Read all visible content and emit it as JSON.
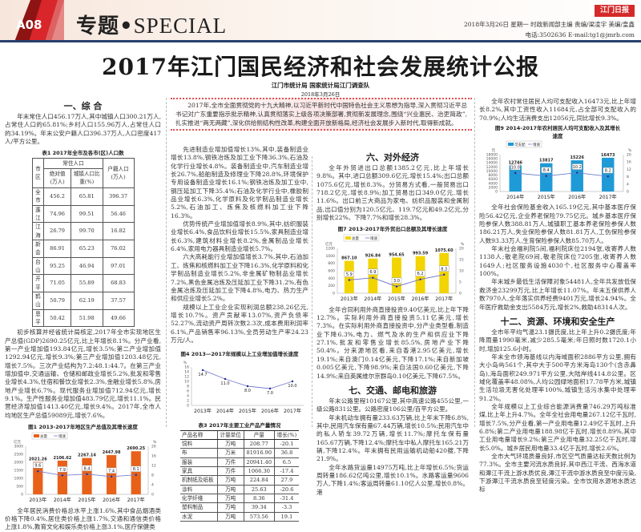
{
  "header": {
    "page": "A08",
    "section_cn": "专题•",
    "section_en": "SPECIAL",
    "logo": "江门日报",
    "meta_line1": "2018年3月26日  星期一    时政新闻部主编  责编/梁凌宇    美编/皇鑫",
    "meta_line2": "电话:3502636  E-mail:tg1@jmrb.com"
  },
  "article": {
    "title": "2017年江门国民经济和社会发展统计公报",
    "author": "江门市统计局  国家统计局江门调查队",
    "date": "2018年3月26日",
    "intro": "2017年,全市全面贯彻党的十九大精神,以习近平新时代中国特色社会主义思想为指导,深入贯彻习近平总书记对广东重要指示批示精神,认真贯彻落实上级各项决策部署,贯彻新发展理念,围绕“兴业惠民、治吏简政”,扎实推进“两无两藏”,深化供给侧结构性改革,构建全面开放新格局,经济社会发展步入新时代,取得新成就。"
  },
  "col1": {
    "heading": "一、综  合",
    "p1": "年末常住人口456.17万人,其中城镇人口300.21万人,占常住人口的65.81%;乡村人口155.96万人,占常住人口的34.19%。年末公安户籍人口396.37万人,人口密度417人/平方公里。",
    "p2": "初步核算并经省统计局核定,2017年全市实现地区生产总值(GDP)2690.25亿元,比上年增长8.1%。分产业看,第一产业增加值193.84亿元,增长3.5%;第二产业增加值1292.94亿元,增长9.3%;第三产业增加值1203.48亿元,增长7.5%。三次产业结构为7.2:48.1:44.7。在第三产业增加值中,交通运输、仓储和邮政业增长5.2%,批发和零售业增长4.3%,住宿和餐饮业增长2.3%,金融业增长5.8%,房地产业增长6.7%。现代服务业增加值712.94亿元,增长9.1%。生产性服务业增加值483.79亿元,增长11.1%。民营经济增加值1413.40亿元,增长9.4%。2017年,全市人均地区生产总值59089元,增长7.6%。",
    "p3": "全年居民消费价格总水平上涨1.6%,其中食品烟酒类价格下降0.4%,居住类价格上涨1.7%,交通和通信类价格上涨1.8%,教育文化和娱乐类价格上涨3.1%,医疗保健类"
  },
  "table1": {
    "caption": "表1  2017年全市及各市(区)人口数",
    "headers": {
      "district": "市区",
      "resident": "常住人口",
      "abs": "绝对值(万人)",
      "urban": "城镇人口比重(%)",
      "household": "户籍人口(万人)"
    },
    "rows": [
      [
        "全市",
        "456.2",
        "65.81",
        "396.37"
      ],
      [
        "蓬江",
        "74.96",
        "99.51",
        "56.46"
      ],
      [
        "江海",
        "26.79",
        "99.70",
        "16.82"
      ],
      [
        "新会",
        "86.91",
        "65.23",
        "76.02"
      ],
      [
        "台山",
        "95.25",
        "46.94",
        "97.01"
      ],
      [
        "开平",
        "71.05",
        "55.89",
        "68.83"
      ],
      [
        "鹤山",
        "50.79",
        "62.19",
        "37.57"
      ],
      [
        "恩平",
        "50.42",
        "51.98",
        "49.66"
      ]
    ]
  },
  "col2": {
    "p1": "先进制造业增加值增长13%,其中,装备制造业增长13.8%,钢铁冶炼及加工业下降36.3%,石油及化学行业增长4.8%。装备制造业中,汽车制造业增长26.7%,船舶制造及修理业下降28.8%,环境保护专用设备制造业增长16.1%;钢铁冶炼及加工业中,钢压延加工下降35.4%;石油及化学行业中,橡胶制品业增长6.3%,化学原料及化学制品制造业增长5.2%,石油加工、炼焦及核燃料加工业下降16.3%。",
    "p2": "优势传统产业增加值增长8.9%,其中,纺织服装业增长6.4%,食品饮料业增长15.5%,家具制造业增长6.3%,建筑材料业增长8.2%,金属制品业增长6.4%,家用电力器具制造业增长5.7%。",
    "p3": "六大高耗能行业增加值增长3.7%,其中,石油加工、炼焦和核燃料加工业下降16.3%,化学原料和化学制品制造业增长5.2%,非金属矿物制品业增长7.2%,黑色金属冶炼及压延加工业下降31.2%,有色金属冶炼及压延加工业下降4.8%,电力、热力生产和供应业增长5.2%。",
    "p4": "规模以上工业企业实现利润总额238.26亿元,增长10.7%。资产贡献率13.07%,资产负债率52.27%,流动资产周转次数2.3次,成本费用利润率6.1%,产品销售率96.13%,全员劳动生产率24.23万元/人。"
  },
  "table3": {
    "caption": "表3  2017年主要工业产品产量情况",
    "headers": [
      "产品名称",
      "计量单位",
      "产量",
      "增长(%)"
    ],
    "rows": [
      [
        "饲料",
        "万吨",
        "208.77",
        "-20.1"
      ],
      [
        "布",
        "万米",
        "81916.90",
        "36.8"
      ],
      [
        "服装",
        "万件",
        "20941.40",
        "6.5"
      ],
      [
        "家具",
        "万件",
        "1066.30",
        "-17.4"
      ],
      [
        "机制纸及纸板",
        "万吨",
        "224.84",
        "27.9"
      ],
      [
        "涂料",
        "万吨",
        "25.63",
        "-20.6"
      ],
      [
        "化学纤维",
        "万吨",
        "8.36",
        "-31.4"
      ],
      [
        "塑料制品",
        "万吨",
        "39.34",
        "-3.3"
      ],
      [
        "水泥",
        "万吨",
        "573.56",
        "19.1"
      ]
    ]
  },
  "col3": {
    "heading6": "六、对外经济",
    "p1": "全年外贸进出口总额1385.2亿元,比上年增长9.8%。其中,进口总额309.6亿元,增长15.4%;出口总额1075.6亿元,增长8.3%。分贸易方式看,一般贸易出口718.2亿元,增长8.9%;加工贸易出口349.0亿元,增长11.6%。出口前三大商品为家电、纺织品服装和金属制品,出口值分别为120.5亿元、119.7亿元和49.2亿元,分别增长22%、下降7.7%和增长28.3%。",
    "p2": "全年合同利用外商直接投资9.40亿美元,比上年下降12.7%。实际利用外商直接投资5.11亿美元,增长7.3%。在实际利用外商直接投资中,分产业类型看,制造业下降6.3%,电力、燃气及水的生产和供应业下降27.1%,批发和零售业增长85.5%,房地产业下降50.4%。分来源地区看,来自香港2.95亿美元,增长19.1%;来自澳门0.14亿美元,下降17.1%;来自新加坡0.005亿美元,下降98.9%;来自法国0.60亿美元,下降14.9%;来自英属维尔京群岛0.10亿美元,下降67.5%。",
    "heading7": "七、交通、邮电和旅游",
    "p3": "年末公路里程10167公里,其中高速公路455公里,一级公路831公里。公路密度106公里/百平方公里。",
    "p4": "年末机动车拥有量233.63万辆,比上年末下降6.8%,其中,民用汽车保有量67.44万辆,增长10.5%;民用汽车中的私人轿车39.72万辆,增长11.7%;摩托车保有量165.67万辆,下降12.4%;摩托车中私人摩托车165.21万辆,下降12.4%。年末拥有民用运输机动船420艘,下降21.9%。",
    "p5": "全年水路货运量14975万吨,比上年增长6.5%;货运周转量186.62亿吨公里,增长10.1%。水路客运量9606万人,下降1.4%;客运周转量61.10亿人公里,增长0.8%。港"
  },
  "col4": {
    "p1": "全年农村常住居民人均可支配收入16473元,比上年增长8.2%,其中工资性收入11684元,占全部可支配收入的70.9%;人均生活消费支出12056元,同比增长9.3%。",
    "p2": "全年社会保险基金收入165.19亿元,其中基本医疗保险56.42亿元,企业养老保险79.75亿元。城乡基本医疗保险参保人数388.81万人,城镇职工基本养老保险参保人数186.21万人,失业保险参保人数81.81万人,工伤保险参保人数93.33万人,生育保险参保人数85.70万人。",
    "p3": "年末社会福利院5间,福利院床位2194张,收寄养人数1138人;敬老院69间,敬老院床位7205张,收寄养人数1649人;社区服务设施4030个,社区服务中心覆盖率100%。",
    "p4": "年末城乡最低生活保障对象54481人,全年共发放低保救济金23299万元,比上年增长11.07%。年末五保供养人数7970人,全年落实供养经费9401万元,增长24.94%。全年医疗救助金支出5584万元,增长2%,救助48314人次。",
    "heading12": "十二、资源、环境和安全生产",
    "p5": "全市年平均气温23.1摄氏度,比上年上升0.2摄氏度;年降雨量1990毫米,减少285.5毫米;年日照时数1720.1小时,增加125.6小时。",
    "p6": "年末全市领海基线以内海域面积2886平方公里,拥有大小岛屿561个,其中大于500平方米海岛130个(含赤鼻岛),海岛面积249.971平方公里,大陆岸线414.8公里。区域化覆盖率48.08%,人均公园绿地面积17.78平方米,城镇生活垃圾无害化处理率100%,城镇生活污水集中处理率91.2%。",
    "p7": "全年规模以上工业综合能源消费量746.29万吨标准煤,比上年上升4.7%。全年全社会用电量267.12亿千瓦时,增长7.5%,分产业看,第一产业用电量12.49亿千瓦时,上升6.8%;第二产业用电量188.98亿千瓦时,增长8.89%,其中工业用电量增长9.2%;第三产业用电量32.25亿千瓦时,增长5.0%。城乡居民用电量33.4亿千瓦时,增长2.6%。",
    "p8": "全市大气环境质量良好,市区空气质量达标天数比例为77.3%。全市主要河流水质良好,其中西江干流、西海水道和潭江干流上游水质优良,潭江干流中游水质良至中度污染,下游潭江干流水质良至轻度污染。全市饮用水源地水质达标"
  },
  "chart_data": [
    {
      "id": "fig1",
      "type": "bar+line",
      "title": "图1  2013-2017年地区生产总值及其增长速度",
      "categories": [
        "2013年",
        "2014年",
        "2015年",
        "2016年",
        "2017年"
      ],
      "series": [
        {
          "name": "总量",
          "type": "bar",
          "values": [
            2021.26,
            2106.62,
            2267.14,
            2447.98,
            2690.25
          ],
          "color": "#e8611a"
        },
        {
          "name": "增速",
          "type": "line",
          "values": [
            9.6,
            7.9,
            8.4,
            7.4,
            8.1
          ],
          "color": "#7a7fd0"
        }
      ],
      "ylabel_left": "亿元",
      "ylabel_right": "%",
      "ylim_left": [
        0,
        3000
      ],
      "ystep_left": 500,
      "ylim_right": [
        0,
        20
      ],
      "ystep_right": 4,
      "legend": "top-left"
    },
    {
      "id": "fig7",
      "type": "bar+line",
      "title": "图7  2013-2017年外贸出口总额及其增长速度",
      "categories": [
        "2013年",
        "2014年",
        "2015年",
        "2016年",
        "2017年"
      ],
      "series": [
        {
          "name": "总量",
          "type": "bar",
          "values": [
            867.1,
            926.84,
            954.65,
            993.59,
            1075.6
          ],
          "color": "#f2d400"
        },
        {
          "name": "增速",
          "type": "line",
          "values": [
            5.9,
            6.9,
            3.0,
            6.2,
            8.3
          ],
          "color": "#6a6fd0"
        }
      ],
      "ylabel_left": "亿元",
      "ylabel_right": "%",
      "ylim_left": [
        0,
        1200
      ],
      "ystep_left": 200,
      "ylim_right": [
        0,
        20
      ],
      "ystep_right": 5,
      "legend": "top-left"
    },
    {
      "id": "fig9",
      "type": "bar+line",
      "title": "图9  2014-2017年农村居民人均可支配收入及其增长速度",
      "categories": [
        "2014年",
        "2015年",
        "2016年",
        "2017年"
      ],
      "series": [
        {
          "name": "可支配",
          "type": "bar",
          "values": [
            12746,
            13817,
            15226,
            16473
          ],
          "color": "#1e9ad6"
        },
        {
          "name": "增速",
          "type": "line",
          "values": [
            10.0,
            8.4,
            10.2,
            8.2
          ],
          "color": "#6a7fd0"
        }
      ],
      "ylabel_left": "元",
      "ylabel_right": "%",
      "ylim_left": [
        0,
        18000
      ],
      "ystep_left": 2000,
      "ylim_right": [
        0,
        20
      ],
      "ystep_right": 4,
      "legend": "top-left"
    },
    {
      "id": "fig4",
      "type": "line",
      "title": "图4  2013—2017年规模以上工业增加值增长速度",
      "categories": [
        "2013年",
        "2014年",
        "2015年",
        "2016年",
        "2017年"
      ],
      "series": [
        {
          "type": "line",
          "values": [
            14.7,
            11.0,
            8.0,
            7.0,
            10.0
          ],
          "color": "#7a7fd0"
        }
      ],
      "ylabel_left": "%",
      "ylim_left": [
        0,
        16
      ],
      "ystep_left": 2
    }
  ]
}
